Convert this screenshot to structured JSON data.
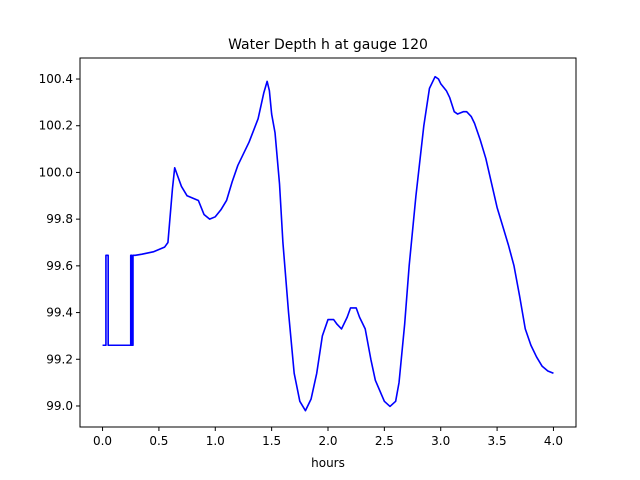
{
  "chart_data": {
    "type": "line",
    "title": "Water Depth h at gauge 120",
    "xlabel": "hours",
    "ylabel": "",
    "xlim": [
      -0.2,
      4.2
    ],
    "ylim": [
      98.91,
      100.49
    ],
    "xticks": [
      0.0,
      0.5,
      1.0,
      1.5,
      2.0,
      2.5,
      3.0,
      3.5,
      4.0
    ],
    "xtick_labels": [
      "0.0",
      "0.5",
      "1.0",
      "1.5",
      "2.0",
      "2.5",
      "3.0",
      "3.5",
      "4.0"
    ],
    "yticks": [
      99.0,
      99.2,
      99.4,
      99.6,
      99.8,
      100.0,
      100.2,
      100.4
    ],
    "ytick_labels": [
      "99.0",
      "99.2",
      "99.4",
      "99.6",
      "99.8",
      "100.0",
      "100.2",
      "100.4"
    ],
    "grid": false,
    "series": [
      {
        "color": "#0000ff",
        "x": [
          0.0,
          0.03,
          0.03,
          0.05,
          0.05,
          0.06,
          0.1,
          0.2,
          0.25,
          0.25,
          0.26,
          0.26,
          0.27,
          0.27,
          0.29,
          0.29,
          0.35,
          0.45,
          0.55,
          0.58,
          0.62,
          0.64,
          0.67,
          0.7,
          0.75,
          0.8,
          0.85,
          0.9,
          0.95,
          1.0,
          1.05,
          1.1,
          1.15,
          1.2,
          1.3,
          1.38,
          1.43,
          1.46,
          1.48,
          1.5,
          1.53,
          1.57,
          1.6,
          1.65,
          1.7,
          1.75,
          1.8,
          1.85,
          1.9,
          1.95,
          2.0,
          2.05,
          2.08,
          2.12,
          2.17,
          2.2,
          2.25,
          2.28,
          2.3,
          2.33,
          2.38,
          2.42,
          2.5,
          2.55,
          2.6,
          2.63,
          2.68,
          2.72,
          2.78,
          2.85,
          2.9,
          2.95,
          2.98,
          3.0,
          3.05,
          3.08,
          3.12,
          3.15,
          3.2,
          3.23,
          3.27,
          3.3,
          3.35,
          3.4,
          3.5,
          3.55,
          3.6,
          3.65,
          3.7,
          3.75,
          3.8,
          3.85,
          3.9,
          3.95,
          4.0
        ],
        "y": [
          99.26,
          99.26,
          99.645,
          99.645,
          99.26,
          99.26,
          99.26,
          99.26,
          99.26,
          99.645,
          99.645,
          99.26,
          99.26,
          99.645,
          99.645,
          99.645,
          99.65,
          99.66,
          99.68,
          99.7,
          99.93,
          100.02,
          99.98,
          99.94,
          99.9,
          99.89,
          99.88,
          99.82,
          99.8,
          99.81,
          99.84,
          99.88,
          99.96,
          100.03,
          100.13,
          100.23,
          100.34,
          100.39,
          100.35,
          100.25,
          100.17,
          99.95,
          99.7,
          99.4,
          99.14,
          99.02,
          98.98,
          99.03,
          99.14,
          99.3,
          99.37,
          99.37,
          99.35,
          99.33,
          99.38,
          99.42,
          99.42,
          99.38,
          99.36,
          99.33,
          99.2,
          99.11,
          99.02,
          98.998,
          99.02,
          99.1,
          99.35,
          99.6,
          99.9,
          100.2,
          100.36,
          100.41,
          100.4,
          100.38,
          100.35,
          100.32,
          100.26,
          100.25,
          100.26,
          100.26,
          100.24,
          100.21,
          100.14,
          100.06,
          99.85,
          99.77,
          99.69,
          99.6,
          99.47,
          99.33,
          99.26,
          99.21,
          99.17,
          99.15,
          99.14
        ]
      }
    ]
  }
}
